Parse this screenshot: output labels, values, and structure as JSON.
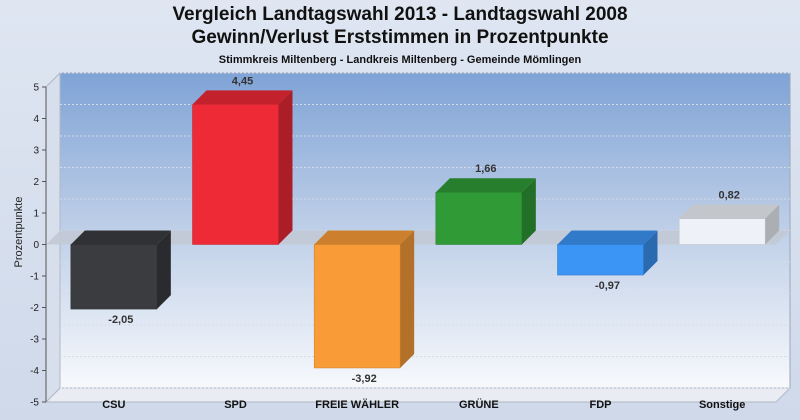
{
  "chart_data": {
    "type": "bar",
    "title": "Vergleich Landtagswahl 2013 - Landtagswahl 2008",
    "title_line2": "Gewinn/Verlust Erststimmen in Prozentpunkte",
    "subtitle": "Stimmkreis Miltenberg - Landkreis Miltenberg - Gemeinde Mömlingen",
    "ylabel": "Prozentpunkte",
    "xlabel": "",
    "ylim": [
      -5,
      5
    ],
    "yticks": [
      5,
      4,
      3,
      2,
      1,
      0,
      -1,
      -2,
      -3,
      -4,
      -5
    ],
    "categories": [
      "CSU",
      "SPD",
      "FREIE WÄHLER",
      "GRÜNE",
      "FDP",
      "Sonstige"
    ],
    "values": [
      -2.05,
      4.45,
      -3.92,
      1.66,
      -0.97,
      0.82
    ],
    "data_labels": [
      "-2,05",
      "4,45",
      "-3,92",
      "1,66",
      "-0,97",
      "0,82"
    ],
    "colors": [
      "#3a3c40",
      "#ee2a37",
      "#f99c38",
      "#2f9a36",
      "#3b95f5",
      "#eef2f8"
    ],
    "grid": true,
    "legend": "none"
  }
}
